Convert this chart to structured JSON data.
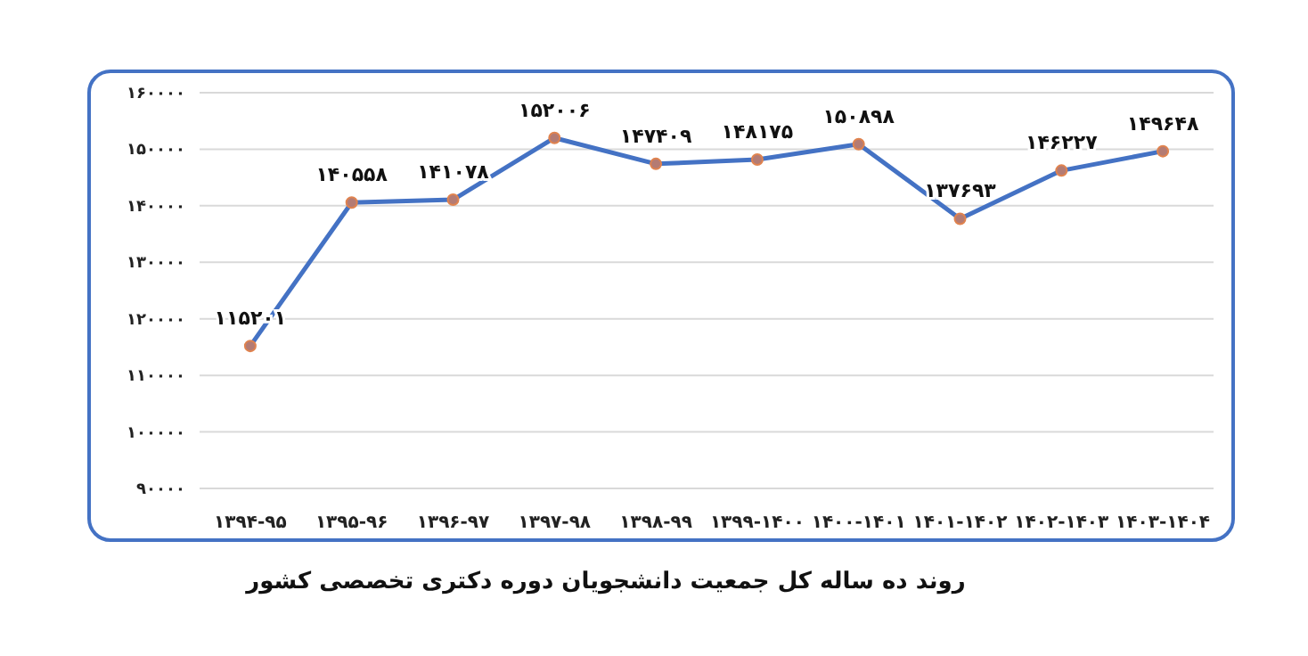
{
  "chart_data": {
    "type": "line",
    "categories": [
      "۱۳۹۴-۹۵",
      "۱۳۹۵-۹۶",
      "۱۳۹۶-۹۷",
      "۱۳۹۷-۹۸",
      "۱۳۹۸-۹۹",
      "۱۳۹۹-۱۴۰۰",
      "۱۴۰۰-۱۴۰۱",
      "۱۴۰۱-۱۴۰۲",
      "۱۴۰۲-۱۴۰۳",
      "۱۴۰۳-۱۴۰۴"
    ],
    "series": [
      {
        "color": "#4472c4",
        "values": [
          115201,
          140558,
          141078,
          152006,
          147409,
          148175,
          150898,
          137693,
          146227,
          149648
        ],
        "value_labels": [
          "۱۱۵۲۰۱",
          "۱۴۰۵۵۸",
          "۱۴۱۰۷۸",
          "۱۵۲۰۰۶",
          "۱۴۷۴۰۹",
          "۱۴۸۱۷۵",
          "۱۵۰۸۹۸",
          "۱۳۷۶۹۳",
          "۱۴۶۲۲۷",
          "۱۴۹۶۴۸"
        ]
      }
    ],
    "ylim": [
      90000,
      160000
    ],
    "yticks": [
      {
        "value": 90000,
        "label": "۹۰۰۰۰"
      },
      {
        "value": 100000,
        "label": "۱۰۰۰۰۰"
      },
      {
        "value": 110000,
        "label": "۱۱۰۰۰۰"
      },
      {
        "value": 120000,
        "label": "۱۲۰۰۰۰"
      },
      {
        "value": 130000,
        "label": "۱۳۰۰۰۰"
      },
      {
        "value": 140000,
        "label": "۱۴۰۰۰۰"
      },
      {
        "value": 150000,
        "label": "۱۵۰۰۰۰"
      },
      {
        "value": 160000,
        "label": "۱۶۰۰۰۰"
      }
    ],
    "grid": "y",
    "marker": "circle",
    "line_style": "solid",
    "annotations": [
      "روند ده ساله کل جمعیت دانشجویان دوره دکتری تخصصی کشور"
    ]
  }
}
